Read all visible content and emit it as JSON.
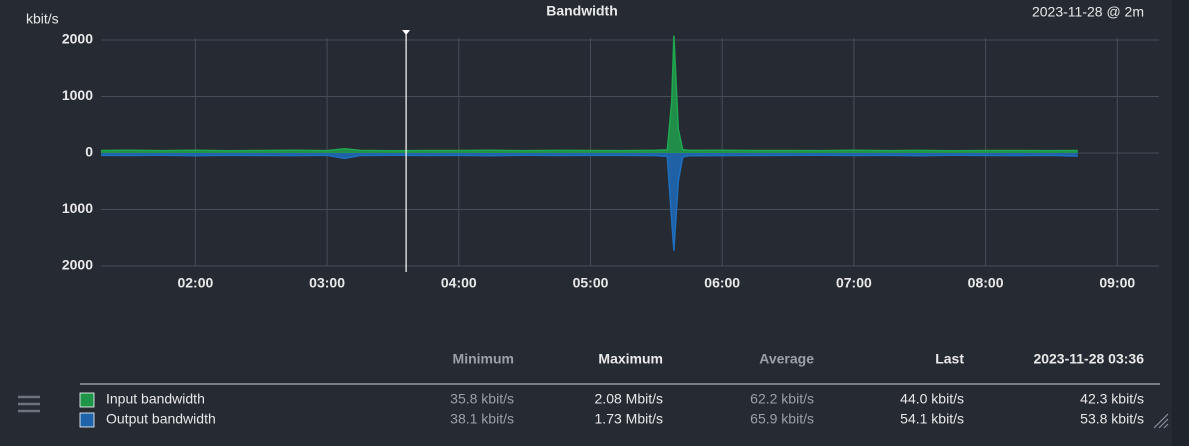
{
  "chart_data": {
    "type": "area",
    "title": "Bandwidth",
    "subtitle": "2023-11-28 @ 2m",
    "y_label": "kbit/s",
    "x": [
      "01:17",
      "01:30",
      "01:45",
      "02:00",
      "02:15",
      "02:30",
      "02:45",
      "03:00",
      "03:08",
      "03:15",
      "03:30",
      "03:45",
      "04:00",
      "04:15",
      "04:30",
      "04:45",
      "05:00",
      "05:15",
      "05:30",
      "05:35",
      "05:37",
      "05:38",
      "05:40",
      "05:42",
      "05:45",
      "06:00",
      "06:15",
      "06:30",
      "06:45",
      "07:00",
      "07:15",
      "07:30",
      "07:45",
      "08:00",
      "08:15",
      "08:30",
      "08:42"
    ],
    "series": [
      {
        "name": "Input bandwidth",
        "color": "#1fa84f",
        "values": [
          45,
          48,
          42,
          50,
          40,
          44,
          47,
          43,
          75,
          46,
          41,
          45,
          44,
          48,
          42,
          46,
          44,
          43,
          47,
          55,
          900,
          2080,
          420,
          60,
          46,
          48,
          45,
          44,
          42,
          47,
          43,
          46,
          41,
          45,
          44,
          43,
          44
        ],
        "stats": [
          "35.8 kbit/s",
          "2.08 Mbit/s",
          "62.2 kbit/s",
          "44.0 kbit/s",
          "42.3 kbit/s"
        ]
      },
      {
        "name": "Output bandwidth",
        "color": "#1e6fc0",
        "values": [
          -42,
          -45,
          -40,
          -48,
          -39,
          -44,
          -46,
          -41,
          -95,
          -45,
          -40,
          -44,
          -43,
          -47,
          -41,
          -45,
          -43,
          -42,
          -46,
          -60,
          -1200,
          -1730,
          -500,
          -70,
          -48,
          -46,
          -44,
          -43,
          -41,
          -45,
          -42,
          -47,
          -40,
          -44,
          -46,
          -43,
          -54
        ],
        "stats": [
          "38.1 kbit/s",
          "1.73 Mbit/s",
          "65.9 kbit/s",
          "54.1 kbit/s",
          "53.8 kbit/s"
        ]
      }
    ],
    "stat_columns": [
      "Minimum",
      "Maximum",
      "Average",
      "Last",
      "2023-11-28 03:36"
    ],
    "xlim": [
      "01:17",
      "09:19"
    ],
    "xticks": [
      "02:00",
      "03:00",
      "04:00",
      "05:00",
      "06:00",
      "07:00",
      "08:00",
      "09:00"
    ],
    "ylim": [
      -2000,
      2000
    ],
    "yticks": [
      2000,
      1000,
      0,
      {
        "value": -1000,
        "label": "1000"
      },
      {
        "value": -2000,
        "label": "2000"
      }
    ],
    "grid": true
  }
}
